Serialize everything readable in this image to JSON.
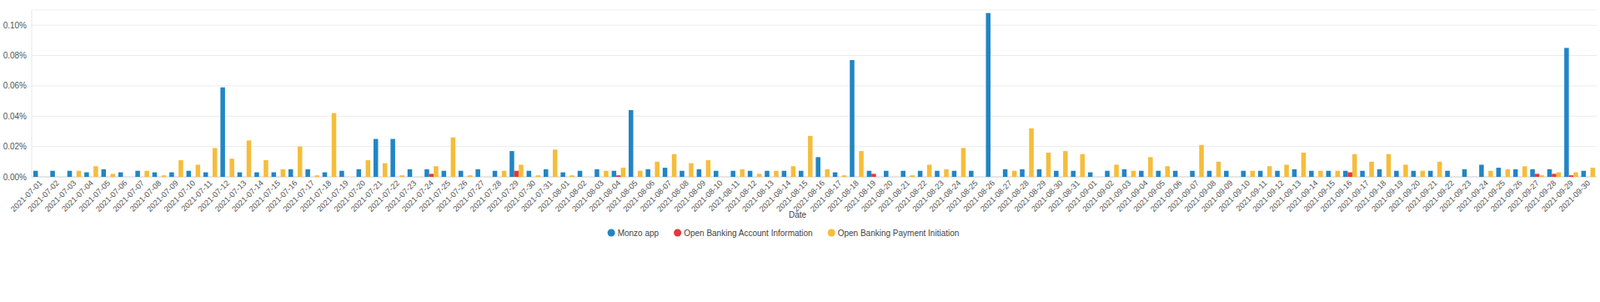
{
  "chart_data": {
    "type": "bar",
    "x_label": "Date",
    "categories": [
      "2021-07-01",
      "2021-07-02",
      "2021-07-03",
      "2021-07-04",
      "2021-07-05",
      "2021-07-06",
      "2021-07-07",
      "2021-07-08",
      "2021-07-09",
      "2021-07-10",
      "2021-07-11",
      "2021-07-12",
      "2021-07-13",
      "2021-07-14",
      "2021-07-15",
      "2021-07-16",
      "2021-07-17",
      "2021-07-18",
      "2021-07-19",
      "2021-07-20",
      "2021-07-21",
      "2021-07-22",
      "2021-07-23",
      "2021-07-24",
      "2021-07-25",
      "2021-07-26",
      "2021-07-27",
      "2021-07-28",
      "2021-07-29",
      "2021-07-30",
      "2021-07-31",
      "2021-08-01",
      "2021-08-02",
      "2021-08-03",
      "2021-08-04",
      "2021-08-05",
      "2021-08-06",
      "2021-08-07",
      "2021-08-08",
      "2021-08-09",
      "2021-08-10",
      "2021-08-11",
      "2021-08-12",
      "2021-08-13",
      "2021-08-14",
      "2021-08-15",
      "2021-08-16",
      "2021-08-17",
      "2021-08-18",
      "2021-08-19",
      "2021-08-20",
      "2021-08-21",
      "2021-08-22",
      "2021-08-23",
      "2021-08-24",
      "2021-08-25",
      "2021-08-26",
      "2021-08-27",
      "2021-08-28",
      "2021-08-29",
      "2021-08-30",
      "2021-08-31",
      "2021-09-01",
      "2021-09-02",
      "2021-09-03",
      "2021-09-04",
      "2021-09-05",
      "2021-09-06",
      "2021-09-07",
      "2021-09-08",
      "2021-09-09",
      "2021-09-10",
      "2021-09-11",
      "2021-09-12",
      "2021-09-13",
      "2021-09-14",
      "2021-09-15",
      "2021-09-16",
      "2021-09-17",
      "2021-09-18",
      "2021-09-19",
      "2021-09-20",
      "2021-09-21",
      "2021-09-22",
      "2021-09-23",
      "2021-09-24",
      "2021-09-25",
      "2021-09-26",
      "2021-09-27",
      "2021-09-28",
      "2021-09-29",
      "2021-09-30"
    ],
    "series": [
      {
        "name": "Monzo app",
        "color": "#2185c5",
        "values": [
          0.004,
          0.004,
          0.004,
          0.003,
          0.005,
          0.003,
          0.004,
          0.003,
          0.003,
          0.004,
          0.003,
          0.059,
          0.003,
          0.003,
          0.003,
          0.005,
          0.005,
          0.003,
          0.004,
          0.005,
          0.025,
          0.025,
          0.005,
          0.005,
          0.004,
          0.004,
          0.005,
          0.004,
          0.017,
          0.004,
          0.005,
          0.003,
          0.004,
          0.005,
          0.004,
          0.044,
          0.005,
          0.006,
          0.004,
          0.005,
          0.004,
          0.004,
          0.004,
          0.004,
          0.004,
          0.004,
          0.013,
          0.003,
          0.077,
          0.004,
          0.004,
          0.004,
          0.004,
          0.004,
          0.004,
          0.004,
          0.108,
          0.005,
          0.005,
          0.005,
          0.004,
          0.004,
          0.003,
          0.004,
          0.005,
          0.004,
          0.004,
          0.004,
          0.004,
          0.004,
          0.004,
          0.004,
          0.004,
          0.004,
          0.005,
          0.004,
          0.004,
          0.004,
          0.004,
          0.005,
          0.004,
          0.004,
          0.004,
          0.004,
          0.005,
          0.008,
          0.006,
          0.005,
          0.005,
          0.005,
          0.085,
          0.004
        ]
      },
      {
        "name": "Open Banking Account Information",
        "color": "#e8373a",
        "values": [
          0,
          0,
          0,
          0,
          0,
          0,
          0,
          0,
          0,
          0,
          0,
          0,
          0,
          0,
          0,
          0,
          0,
          0,
          0,
          0,
          0,
          0,
          0,
          0.002,
          0,
          0,
          0,
          0,
          0.004,
          0,
          0,
          0,
          0,
          0,
          0.001,
          0,
          0,
          0,
          0,
          0,
          0,
          0,
          0,
          0,
          0,
          0,
          0,
          0,
          0,
          0.002,
          0,
          0,
          0,
          0,
          0,
          0,
          0,
          0,
          0,
          0,
          0,
          0,
          0,
          0,
          0,
          0,
          0,
          0,
          0,
          0,
          0,
          0,
          0,
          0,
          0,
          0,
          0,
          0.003,
          0,
          0,
          0,
          0,
          0,
          0,
          0,
          0,
          0,
          0,
          0.002,
          0.002,
          0.001,
          0
        ]
      },
      {
        "name": "Open Banking Payment Initiation",
        "color": "#f5bd3a",
        "values": [
          0,
          0,
          0.004,
          0.007,
          0.002,
          0,
          0.004,
          0.001,
          0.011,
          0.008,
          0.019,
          0.012,
          0.024,
          0.011,
          0.005,
          0.02,
          0.001,
          0.042,
          0,
          0.011,
          0.009,
          0.001,
          0,
          0.007,
          0.026,
          0.001,
          0,
          0.004,
          0.008,
          0.001,
          0.018,
          0.001,
          0,
          0.004,
          0.006,
          0.004,
          0.01,
          0.015,
          0.009,
          0.011,
          0,
          0.005,
          0.002,
          0.004,
          0.007,
          0.027,
          0.005,
          0.001,
          0.017,
          0,
          0,
          0.001,
          0.008,
          0.005,
          0.019,
          0,
          0,
          0.004,
          0.032,
          0.016,
          0.017,
          0.015,
          0,
          0.008,
          0.004,
          0.013,
          0.007,
          0,
          0.021,
          0.01,
          0,
          0.004,
          0.007,
          0.008,
          0.016,
          0.004,
          0.004,
          0.015,
          0.01,
          0.015,
          0.008,
          0.004,
          0.01,
          0,
          0,
          0.004,
          0.005,
          0.007,
          0.001,
          0.003,
          0.003,
          0.006
        ]
      }
    ],
    "ylim": [
      0,
      0.11
    ],
    "yticks": [
      {
        "value": 0,
        "label": "0.00%"
      },
      {
        "value": 0.02,
        "label": "0.02%"
      },
      {
        "value": 0.04,
        "label": "0.04%"
      },
      {
        "value": 0.06,
        "label": "0.06%"
      },
      {
        "value": 0.08,
        "label": "0.08%"
      },
      {
        "value": 0.1,
        "label": "0.10%"
      }
    ],
    "grid": true,
    "legend": "bottom"
  }
}
